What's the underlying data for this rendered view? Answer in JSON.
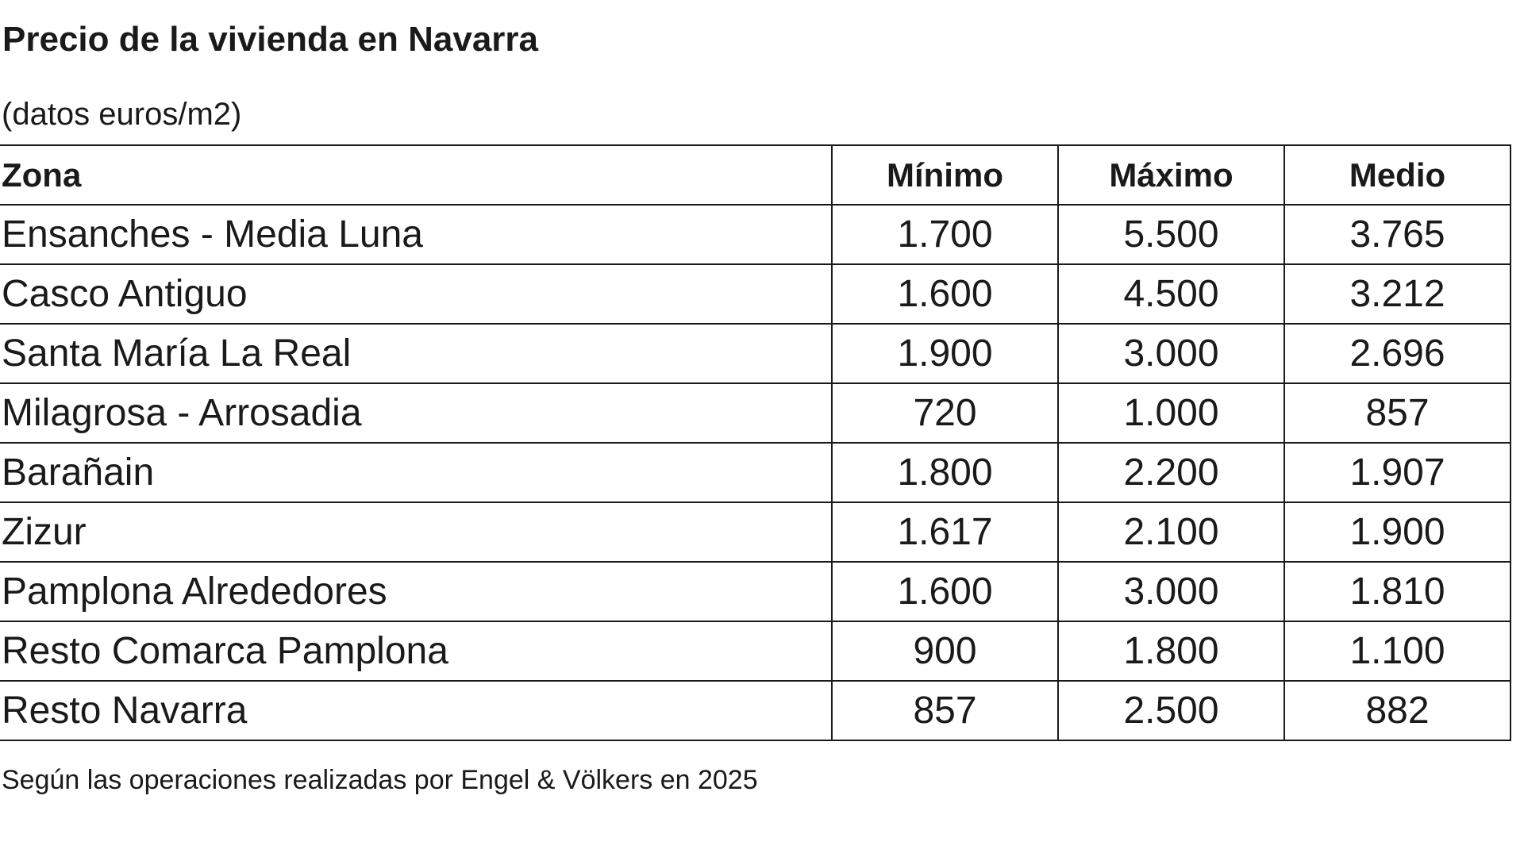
{
  "title": "Precio de la vivienda en Navarra",
  "subtitle": "(datos euros/m2)",
  "footnote": "Según las operaciones realizadas por Engel & Völkers en 2025",
  "chart_data": {
    "type": "table",
    "title": "Precio de la vivienda en Navarra",
    "subtitle": "(datos euros/m2)",
    "columns": [
      "Zona",
      "Mínimo",
      "Máximo",
      "Medio"
    ],
    "rows": [
      [
        "Ensanches - Media Luna",
        "1.700",
        "5.500",
        "3.765"
      ],
      [
        "Casco Antiguo",
        "1.600",
        "4.500",
        "3.212"
      ],
      [
        "Santa María La Real",
        "1.900",
        "3.000",
        "2.696"
      ],
      [
        "Milagrosa - Arrosadia",
        "720",
        "1.000",
        "857"
      ],
      [
        "Barañain",
        "1.800",
        "2.200",
        "1.907"
      ],
      [
        "Zizur",
        "1.617",
        "2.100",
        "1.900"
      ],
      [
        "Pamplona Alrededores",
        "1.600",
        "3.000",
        "1.810"
      ],
      [
        "Resto Comarca Pamplona",
        "900",
        "1.800",
        "1.100"
      ],
      [
        "Resto Navarra",
        "857",
        "2.500",
        "882"
      ]
    ],
    "note": "Según las operaciones realizadas por Engel & Völkers en 2025"
  }
}
